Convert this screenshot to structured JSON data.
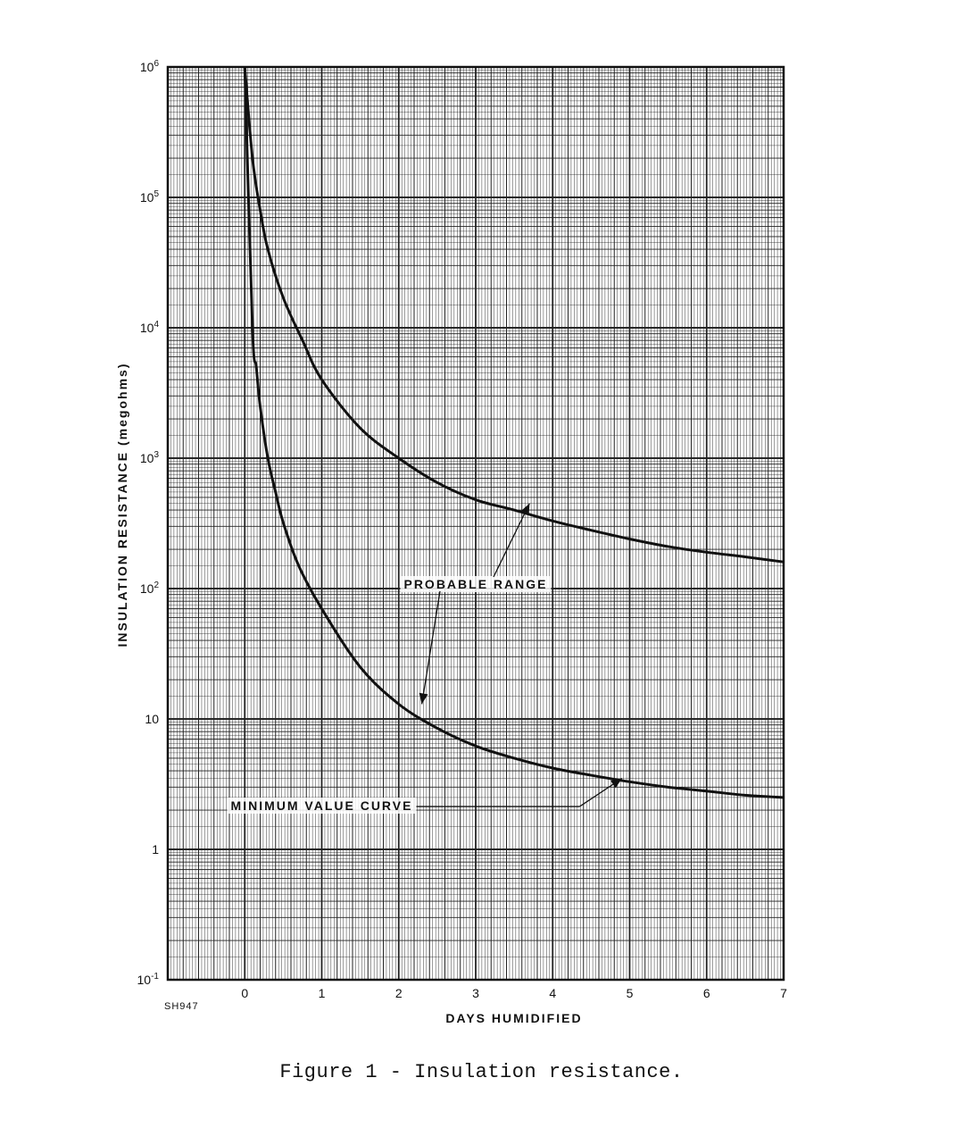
{
  "chart_data": {
    "type": "line",
    "title": "",
    "xlabel": "DAYS HUMIDIFIED",
    "ylabel": "INSULATION RESISTANCE (megohms)",
    "xlim": [
      -1,
      7
    ],
    "ylim_log10": [
      -1,
      6
    ],
    "y_scale": "log",
    "grid": true,
    "x_ticks": [
      0,
      1,
      2,
      3,
      4,
      5,
      6,
      7
    ],
    "x_tick_labels": [
      "0",
      "1",
      "2",
      "3",
      "4",
      "5",
      "6",
      "7"
    ],
    "y_ticks": [
      {
        "value": 1000000,
        "base": "10",
        "exp": "6"
      },
      {
        "value": 100000,
        "base": "10",
        "exp": "5"
      },
      {
        "value": 10000,
        "base": "10",
        "exp": "4"
      },
      {
        "value": 1000,
        "base": "10",
        "exp": "3"
      },
      {
        "value": 100,
        "base": "10",
        "exp": "2"
      },
      {
        "value": 10,
        "base": "10",
        "exp": ""
      },
      {
        "value": 1,
        "base": "1",
        "exp": ""
      },
      {
        "value": 0.1,
        "base": "10",
        "exp": "-1"
      }
    ],
    "series": [
      {
        "x": [
          0,
          0.1,
          0.2,
          0.3,
          0.5,
          0.75,
          1.0,
          1.5,
          2.0,
          2.5,
          3.0,
          3.5,
          4.0,
          4.5,
          5.0,
          5.5,
          6.0,
          6.5,
          7.0
        ],
        "y": [
          1000000,
          200000,
          80000,
          40000,
          17000,
          8000,
          4000,
          1700,
          1000,
          650,
          480,
          400,
          330,
          280,
          240,
          210,
          190,
          175,
          160
        ]
      },
      {
        "x": [
          0.0,
          0.1,
          0.15,
          0.2,
          0.3,
          0.4,
          0.5,
          0.7,
          1.0,
          1.5,
          2.0,
          2.5,
          3.0,
          3.5,
          4.0,
          4.5,
          5.0,
          5.5,
          6.0,
          6.5,
          7.0
        ],
        "y": [
          1000000,
          10000,
          5000,
          2500,
          1000,
          550,
          320,
          150,
          70,
          25,
          13,
          8.5,
          6.2,
          5.0,
          4.2,
          3.7,
          3.3,
          3.0,
          2.8,
          2.6,
          2.5
        ]
      }
    ],
    "annotations": [
      {
        "text": "PROBABLE RANGE",
        "x": 3.0,
        "y": 100,
        "arrows_to": [
          {
            "x": 3.7,
            "y": 450
          },
          {
            "x": 2.3,
            "y": 13
          }
        ]
      },
      {
        "text": "MINIMUM VALUE CURVE",
        "x": 1.0,
        "y": 2.0,
        "arrows_to": [
          {
            "x": 4.9,
            "y": 3.5
          }
        ]
      }
    ],
    "corner_note": "SH947"
  },
  "caption": "Figure 1 - Insulation resistance."
}
